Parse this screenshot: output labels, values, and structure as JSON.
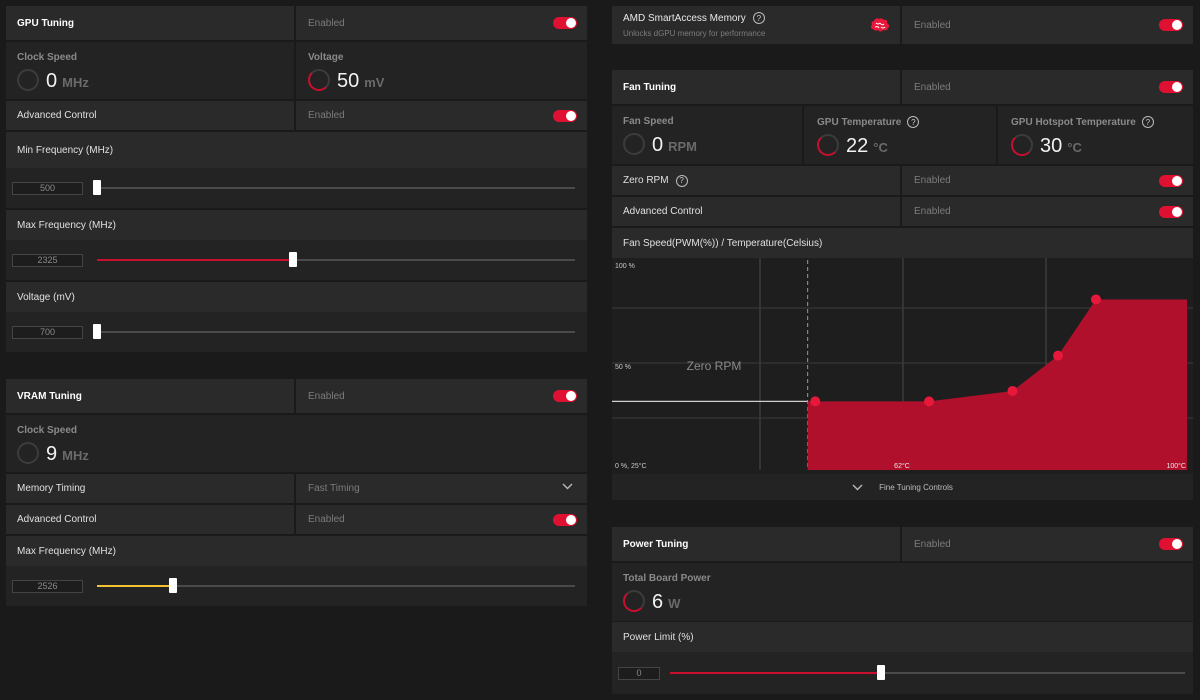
{
  "gpu_tuning": {
    "title": "GPU Tuning",
    "status": "Enabled",
    "clock": {
      "title": "Clock Speed",
      "value": "0",
      "unit": "MHz"
    },
    "voltage": {
      "title": "Voltage",
      "value": "50",
      "unit": "mV"
    },
    "advanced_label": "Advanced Control",
    "advanced_status": "Enabled",
    "min_freq": {
      "label": "Min Frequency (MHz)",
      "value": "500",
      "fraction": 0.0
    },
    "max_freq": {
      "label": "Max Frequency (MHz)",
      "value": "2325",
      "fraction": 0.41
    },
    "voltage_slider": {
      "label": "Voltage (mV)",
      "value": "700",
      "fraction": 0.0
    }
  },
  "vram_tuning": {
    "title": "VRAM Tuning",
    "status": "Enabled",
    "clock": {
      "title": "Clock Speed",
      "value": "9",
      "unit": "MHz"
    },
    "memory_timing_label": "Memory Timing",
    "memory_timing_value": "Fast Timing",
    "advanced_label": "Advanced Control",
    "advanced_status": "Enabled",
    "max_freq": {
      "label": "Max Frequency (MHz)",
      "value": "2526",
      "fraction": 0.16
    }
  },
  "smart_access": {
    "title": "AMD SmartAccess Memory",
    "subtitle": "Unlocks dGPU memory for performance",
    "status": "Enabled",
    "help_icon": "?"
  },
  "fan_tuning": {
    "title": "Fan Tuning",
    "status": "Enabled",
    "fan_speed": {
      "title": "Fan Speed",
      "value": "0",
      "unit": "RPM"
    },
    "gpu_temp": {
      "title": "GPU Temperature",
      "value": "22",
      "unit": "°C"
    },
    "hotspot_temp": {
      "title": "GPU Hotspot Temperature",
      "value": "30",
      "unit": "°C"
    },
    "zero_rpm_label": "Zero RPM",
    "zero_rpm_status": "Enabled",
    "advanced_label": "Advanced Control",
    "advanced_status": "Enabled",
    "curve_title": "Fan Speed(PWM(%)) / Temperature(Celsius)",
    "fine_tuning": "Fine Tuning Controls",
    "help_icon": "?"
  },
  "chart_data": {
    "type": "area",
    "title": "Fan Speed(PWM(%)) / Temperature(Celsius)",
    "y_labels": [
      "100 %",
      "50 %",
      "0 %, 25°C"
    ],
    "x_labels": [
      "62°C",
      "100°C"
    ],
    "zero_rpm_label": "Zero RPM",
    "xlim": [
      25,
      100
    ],
    "ylim": [
      0,
      100
    ],
    "zero_rpm_end_temp": 50,
    "zero_rpm_level": 33,
    "points": [
      {
        "temp": 51,
        "pwm": 33
      },
      {
        "temp": 66,
        "pwm": 33
      },
      {
        "temp": 77,
        "pwm": 38
      },
      {
        "temp": 83,
        "pwm": 55
      },
      {
        "temp": 88,
        "pwm": 82
      }
    ],
    "end": {
      "temp": 100,
      "pwm": 82
    },
    "fill_color": "#b0102c",
    "point_color": "#e8183a"
  },
  "power_tuning": {
    "title": "Power Tuning",
    "status": "Enabled",
    "board_power": {
      "title": "Total Board Power",
      "value": "6",
      "unit": "W"
    },
    "power_limit": {
      "label": "Power Limit (%)",
      "value": "0",
      "fraction": 0.41
    }
  },
  "colors": {
    "accent": "#e01033",
    "panel": "#2a2a2a",
    "background": "#1a1a1a",
    "vram_slider": "#f2c230"
  }
}
